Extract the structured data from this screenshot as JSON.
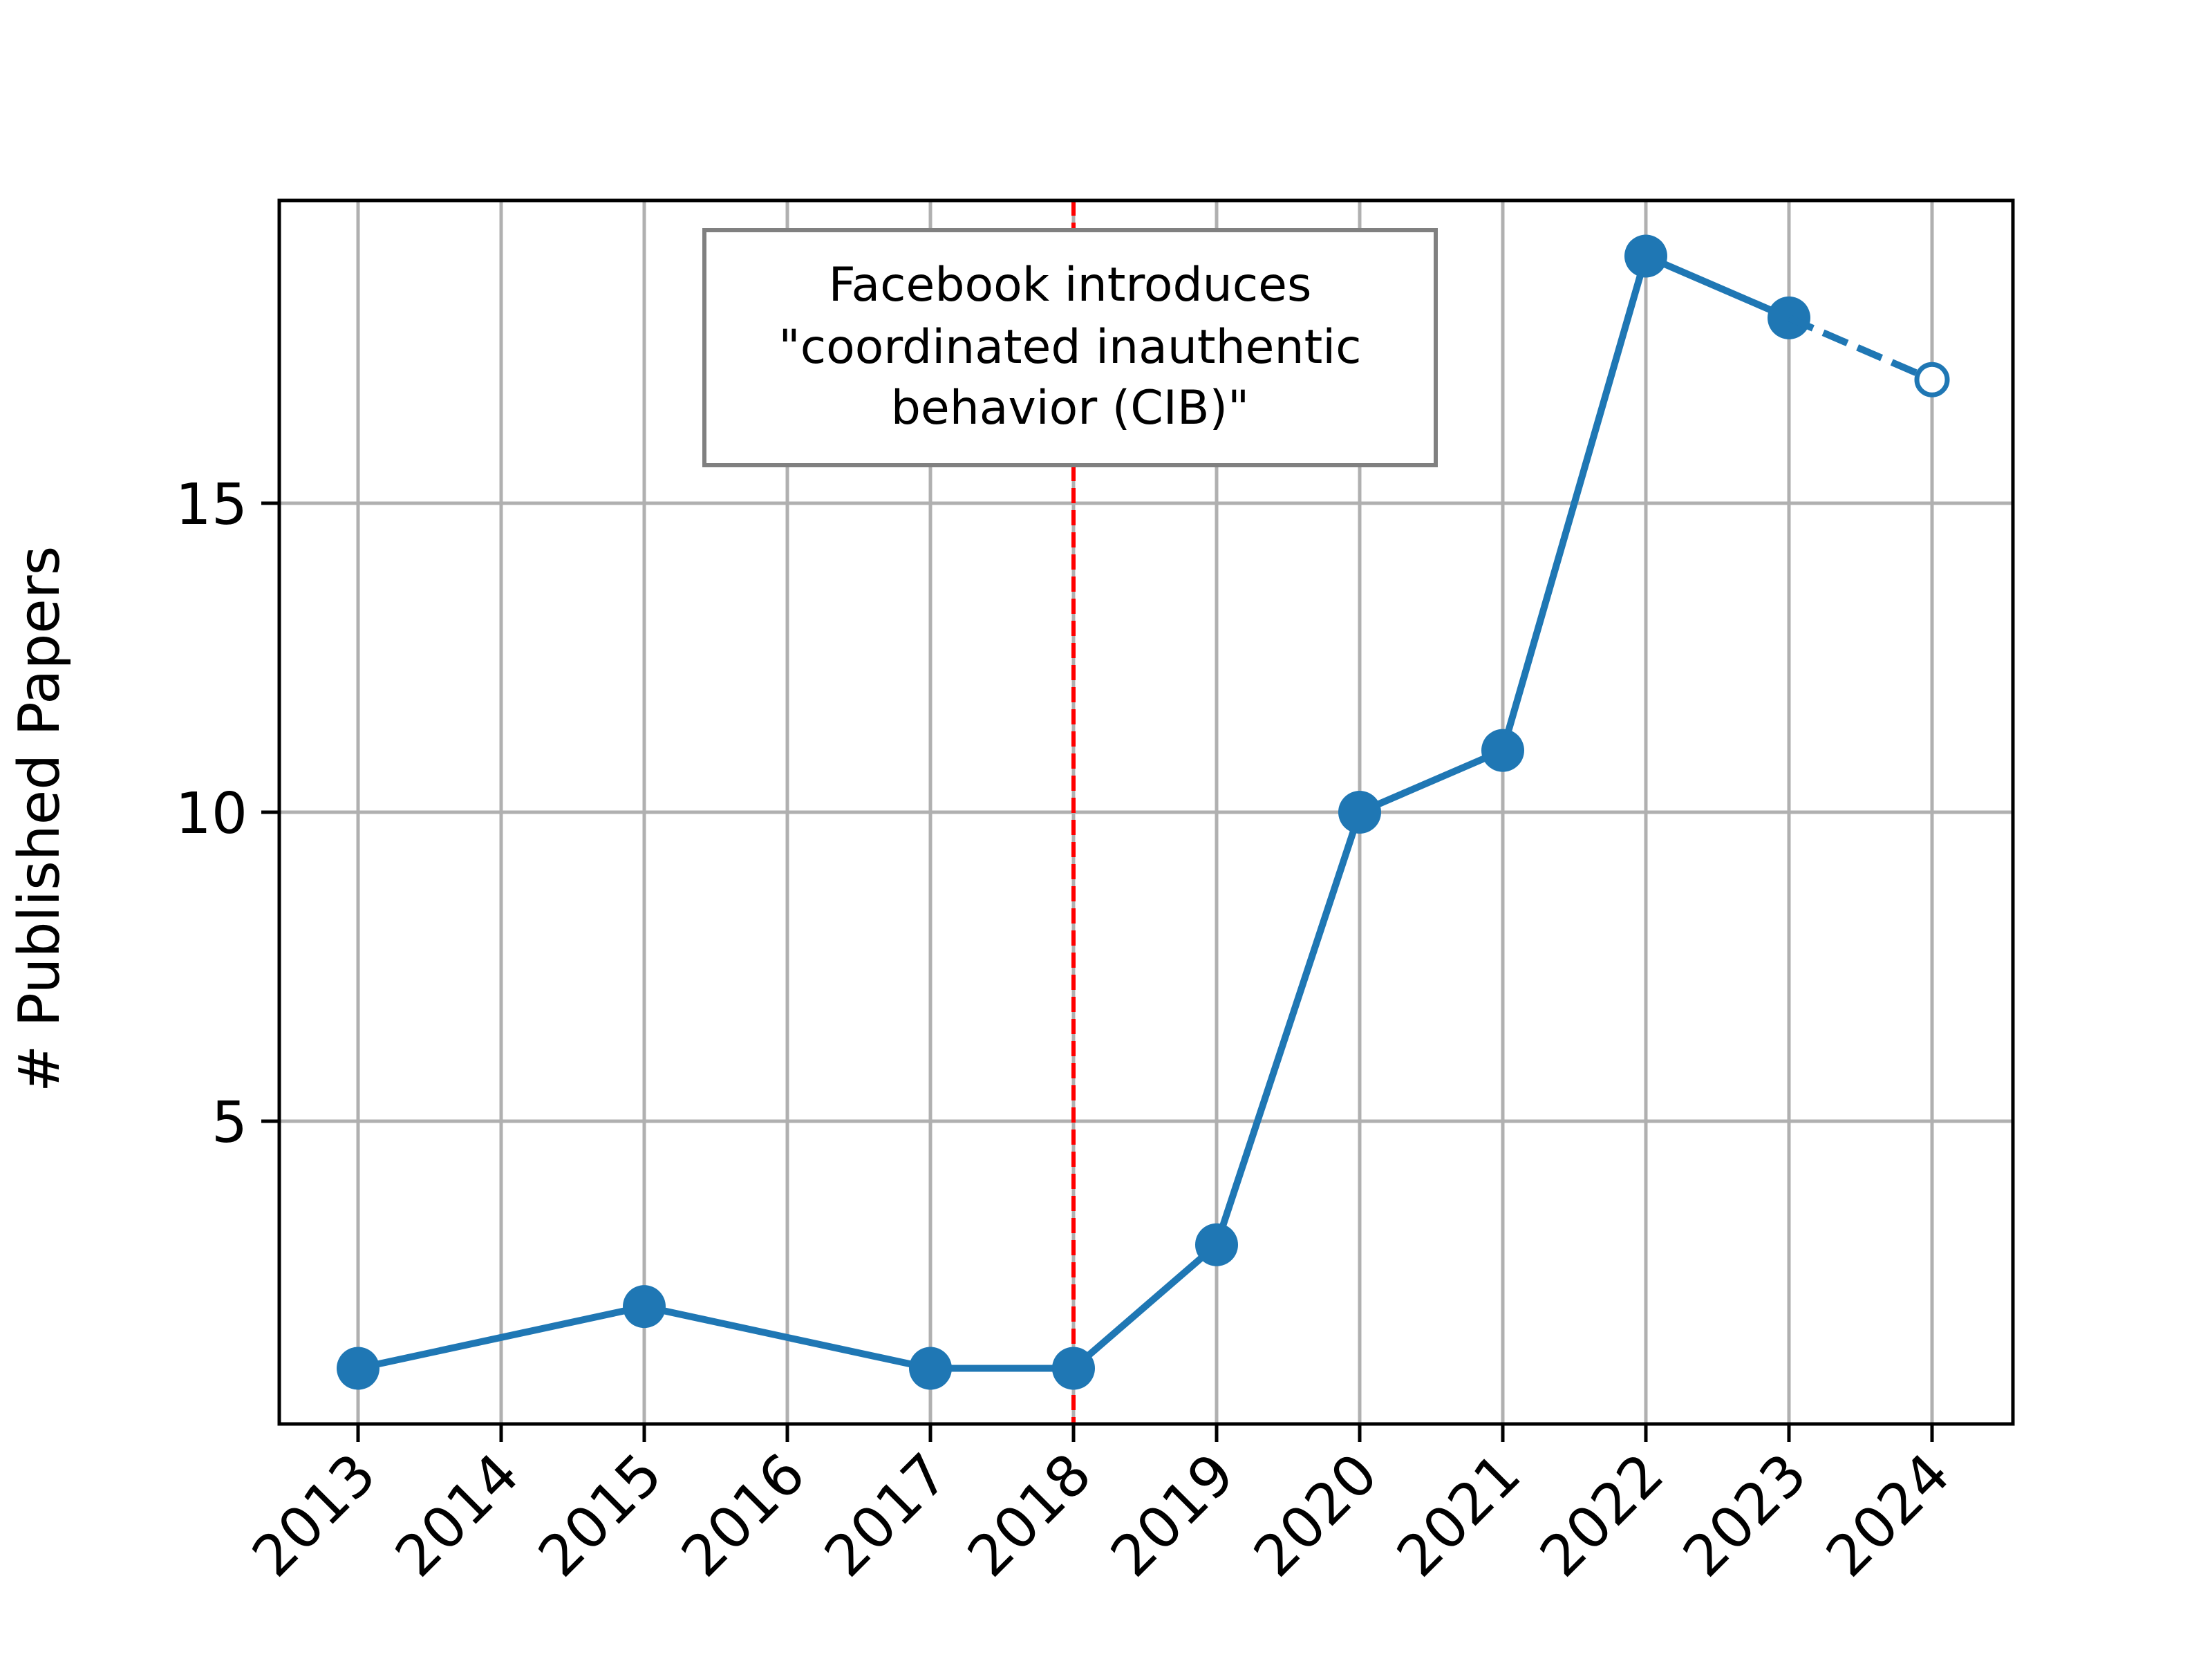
{
  "chart_data": {
    "type": "line",
    "title": "",
    "xlabel": "",
    "ylabel": "# Published Papers",
    "x": [
      "2013",
      "2014",
      "2015",
      "2016",
      "2017",
      "2018",
      "2019",
      "2020",
      "2021",
      "2022",
      "2023",
      "2024"
    ],
    "yticks": [
      5,
      10,
      15
    ],
    "ylim": [
      0.1,
      19.9
    ],
    "grid": true,
    "series": [
      {
        "style": "solid-with-filled-markers",
        "color": "#1f77b4",
        "points": [
          {
            "x": "2013",
            "y": 1
          },
          {
            "x": "2015",
            "y": 2
          },
          {
            "x": "2017",
            "y": 1
          },
          {
            "x": "2018",
            "y": 1
          },
          {
            "x": "2019",
            "y": 3
          },
          {
            "x": "2020",
            "y": 10
          },
          {
            "x": "2021",
            "y": 11
          },
          {
            "x": "2022",
            "y": 19
          },
          {
            "x": "2023",
            "y": 18
          }
        ]
      },
      {
        "style": "dashed-with-open-marker",
        "color": "#1f77b4",
        "points": [
          {
            "x": "2023",
            "y": 18
          },
          {
            "x": "2024",
            "y": 17
          }
        ]
      }
    ],
    "vline": {
      "x": "2018",
      "color": "#ff0000",
      "style": "dashed"
    },
    "annotation": {
      "lines": [
        "Facebook introduces",
        "\"coordinated inauthentic",
        "behavior (CIB)\""
      ]
    }
  }
}
